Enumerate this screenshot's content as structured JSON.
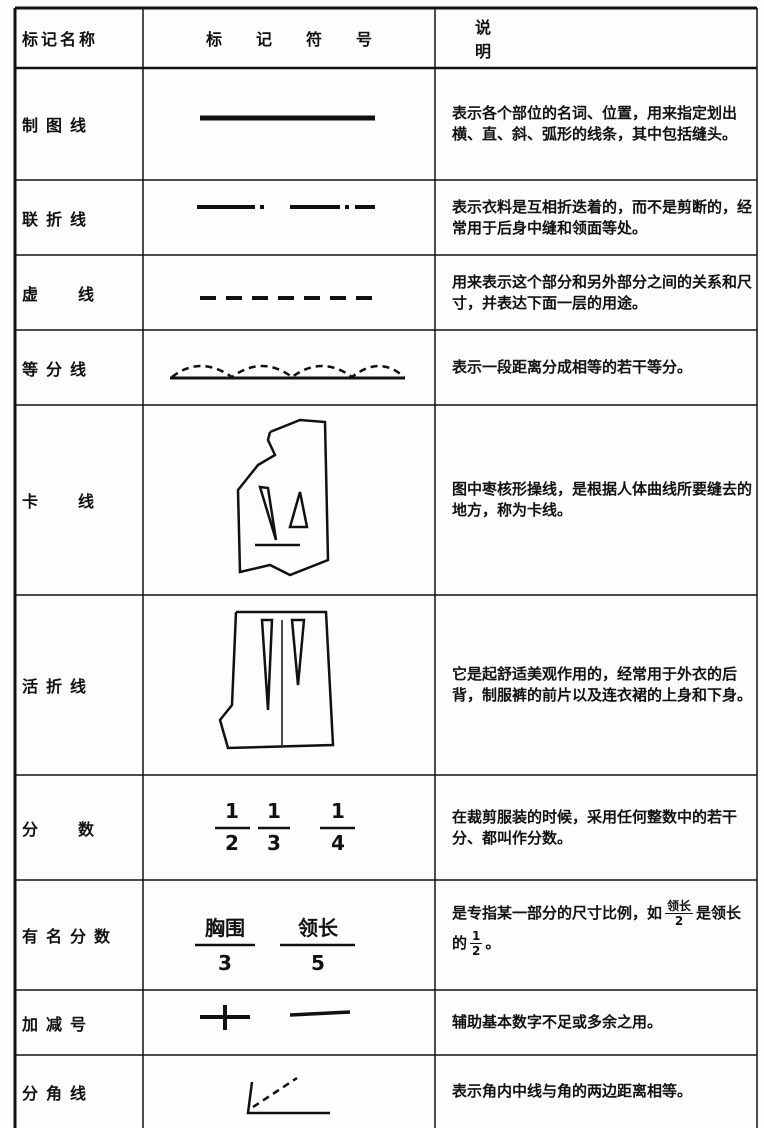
{
  "table": {
    "header": [
      "标记名称",
      "标记符号",
      "说明"
    ],
    "rows": [
      {
        "name": "制图线",
        "description": "表示各个部位的名词、位置，用来指定划出横、直、斜、弧形的线条，其中包括缝头。"
      },
      {
        "name": "联折线",
        "description": "表示衣料是互相折迭着的，而不是剪断的，经常用于后身中缝和领面等处。"
      },
      {
        "name": "虚线",
        "description": "用来表示这个部分和另外部分之间的关系和尺寸，并表达下面一层的用途。"
      },
      {
        "name": "等分线",
        "description": "表示一段距离分成相等的若干等分。"
      },
      {
        "name": "卡线",
        "description": "图中枣核形操线，是根据人体曲线所要缝去的地方，称为卡线。"
      },
      {
        "name": "活折线",
        "description": "它是起舒适美观作用的，经常用于外衣的后背，制服裤的前片以及连衣裙的上身和下身。"
      },
      {
        "name": "分数",
        "symbol": [
          {
            "num": "1",
            "den": "2"
          },
          {
            "num": "1",
            "den": "3"
          },
          {
            "num": "1",
            "den": "4"
          }
        ],
        "description": "在裁剪服装的时候，采用任何整数中的若干分、都叫作分数。"
      },
      {
        "name": "有名分数",
        "symbol": [
          {
            "num": "胸围",
            "den": "3"
          },
          {
            "num": "领长",
            "den": "5"
          }
        ],
        "description": {
          "before": "是专指某一部分的尺寸比例，如",
          "frac1": {
            "num": "领长",
            "den": "2"
          },
          "middle": "是领长的",
          "frac2": {
            "num": "1",
            "den": "2"
          },
          "after": "。"
        }
      },
      {
        "name": "加减号",
        "description": "辅助基本数字不足或多余之用。"
      },
      {
        "name": "分角线",
        "description": "表示角内中线与角的两边距离相等。"
      }
    ]
  }
}
